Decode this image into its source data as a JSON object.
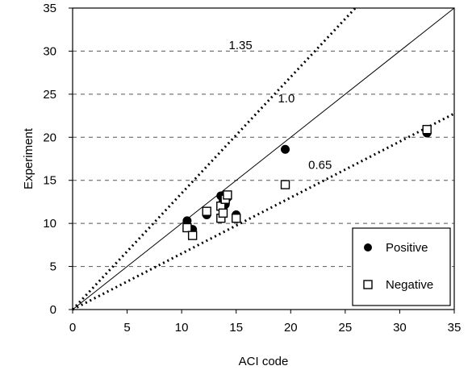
{
  "chart_data": {
    "type": "scatter",
    "xlabel": "ACI code",
    "ylabel": "Experiment",
    "xlim": [
      0,
      35
    ],
    "ylim": [
      0,
      35
    ],
    "x_ticks": [
      "0",
      "5",
      "10",
      "15",
      "20",
      "25",
      "30",
      "35"
    ],
    "y_ticks": [
      "0",
      "5",
      "10",
      "15",
      "20",
      "25",
      "30",
      "35"
    ],
    "grid": "horizontal dashed",
    "legend": "bottom-right",
    "series": [
      {
        "name": "Positive",
        "marker": "filled-circle",
        "points": [
          [
            10.5,
            10.3
          ],
          [
            11.0,
            9.3
          ],
          [
            12.3,
            11.0
          ],
          [
            13.6,
            13.2
          ],
          [
            13.8,
            12.5
          ],
          [
            14.0,
            12.2
          ],
          [
            14.2,
            13.0
          ],
          [
            15.0,
            11.0
          ],
          [
            19.5,
            18.6
          ],
          [
            32.5,
            20.5
          ]
        ]
      },
      {
        "name": "Negative",
        "marker": "open-square",
        "points": [
          [
            10.5,
            9.5
          ],
          [
            11.0,
            8.6
          ],
          [
            12.3,
            11.4
          ],
          [
            13.6,
            12.0
          ],
          [
            13.6,
            10.6
          ],
          [
            13.8,
            11.2
          ],
          [
            14.0,
            12.8
          ],
          [
            14.2,
            13.3
          ],
          [
            15.0,
            10.6
          ],
          [
            19.5,
            14.5
          ],
          [
            32.5,
            20.9
          ]
        ]
      }
    ],
    "reference_lines": [
      {
        "label": "1.35",
        "slope": 1.35,
        "style": "dotted",
        "label_at": [
          15.4,
          30.7
        ]
      },
      {
        "label": "1.0",
        "slope": 1.0,
        "style": "solid",
        "label_at": [
          19.6,
          24.5
        ]
      },
      {
        "label": "0.65",
        "slope": 0.65,
        "style": "dotted",
        "label_at": [
          22.7,
          16.8
        ]
      }
    ]
  }
}
